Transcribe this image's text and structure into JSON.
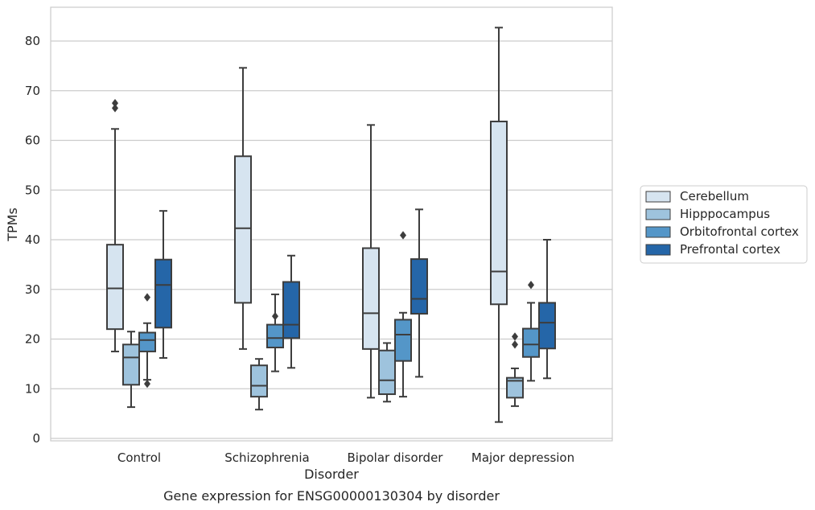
{
  "chart_data": {
    "type": "box",
    "caption": "Gene expression for ENSG00000130304 by disorder",
    "xlabel": "Disorder",
    "ylabel": "TPMs",
    "ylim": [
      -0.5,
      86.5
    ],
    "yticks": [
      0,
      10,
      20,
      30,
      40,
      50,
      60,
      70,
      80
    ],
    "grid": "horizontal",
    "legend_position": "right",
    "categories": [
      "Control",
      "Schizophrenia",
      "Bipolar disorder",
      "Major depression"
    ],
    "series": [
      {
        "name": "Cerebellum",
        "color": "#d6e4f0",
        "boxes": [
          {
            "whisker_low": 17.5,
            "q1": 22.0,
            "median": 30.2,
            "q3": 39.0,
            "whisker_high": 62.3,
            "outliers": [
              66.5,
              67.5
            ]
          },
          {
            "whisker_low": 18.0,
            "q1": 27.3,
            "median": 42.3,
            "q3": 56.8,
            "whisker_high": 74.6,
            "outliers": []
          },
          {
            "whisker_low": 8.2,
            "q1": 18.0,
            "median": 25.2,
            "q3": 38.3,
            "whisker_high": 63.1,
            "outliers": []
          },
          {
            "whisker_low": 3.3,
            "q1": 27.0,
            "median": 33.6,
            "q3": 63.8,
            "whisker_high": 82.7,
            "outliers": []
          }
        ]
      },
      {
        "name": "Hipppocampus",
        "color": "#9ec3dd",
        "boxes": [
          {
            "whisker_low": 6.3,
            "q1": 10.8,
            "median": 16.3,
            "q3": 18.9,
            "whisker_high": 21.5,
            "outliers": []
          },
          {
            "whisker_low": 5.8,
            "q1": 8.4,
            "median": 10.6,
            "q3": 14.7,
            "whisker_high": 16.0,
            "outliers": []
          },
          {
            "whisker_low": 7.4,
            "q1": 8.9,
            "median": 11.7,
            "q3": 17.7,
            "whisker_high": 19.2,
            "outliers": []
          },
          {
            "whisker_low": 6.5,
            "q1": 8.2,
            "median": 11.6,
            "q3": 12.2,
            "whisker_high": 14.1,
            "outliers": [
              18.9,
              20.5
            ]
          }
        ]
      },
      {
        "name": "Orbitofrontal cortex",
        "color": "#5496c8",
        "boxes": [
          {
            "whisker_low": 11.8,
            "q1": 17.5,
            "median": 19.8,
            "q3": 21.3,
            "whisker_high": 23.2,
            "outliers": [
              11.0,
              28.4
            ]
          },
          {
            "whisker_low": 13.5,
            "q1": 18.3,
            "median": 20.2,
            "q3": 22.9,
            "whisker_high": 29.0,
            "outliers": [
              24.6
            ]
          },
          {
            "whisker_low": 8.4,
            "q1": 15.6,
            "median": 20.9,
            "q3": 23.9,
            "whisker_high": 25.3,
            "outliers": [
              40.9
            ]
          },
          {
            "whisker_low": 11.6,
            "q1": 16.4,
            "median": 18.9,
            "q3": 22.1,
            "whisker_high": 27.3,
            "outliers": [
              30.9
            ]
          }
        ]
      },
      {
        "name": "Prefrontal cortex",
        "color": "#2566a8",
        "boxes": [
          {
            "whisker_low": 16.2,
            "q1": 22.3,
            "median": 30.9,
            "q3": 36.0,
            "whisker_high": 45.8,
            "outliers": []
          },
          {
            "whisker_low": 14.2,
            "q1": 20.2,
            "median": 22.9,
            "q3": 31.5,
            "whisker_high": 36.8,
            "outliers": []
          },
          {
            "whisker_low": 12.4,
            "q1": 25.1,
            "median": 28.1,
            "q3": 36.1,
            "whisker_high": 46.1,
            "outliers": []
          },
          {
            "whisker_low": 12.1,
            "q1": 18.1,
            "median": 23.3,
            "q3": 27.3,
            "whisker_high": 40.0,
            "outliers": []
          }
        ]
      }
    ]
  }
}
